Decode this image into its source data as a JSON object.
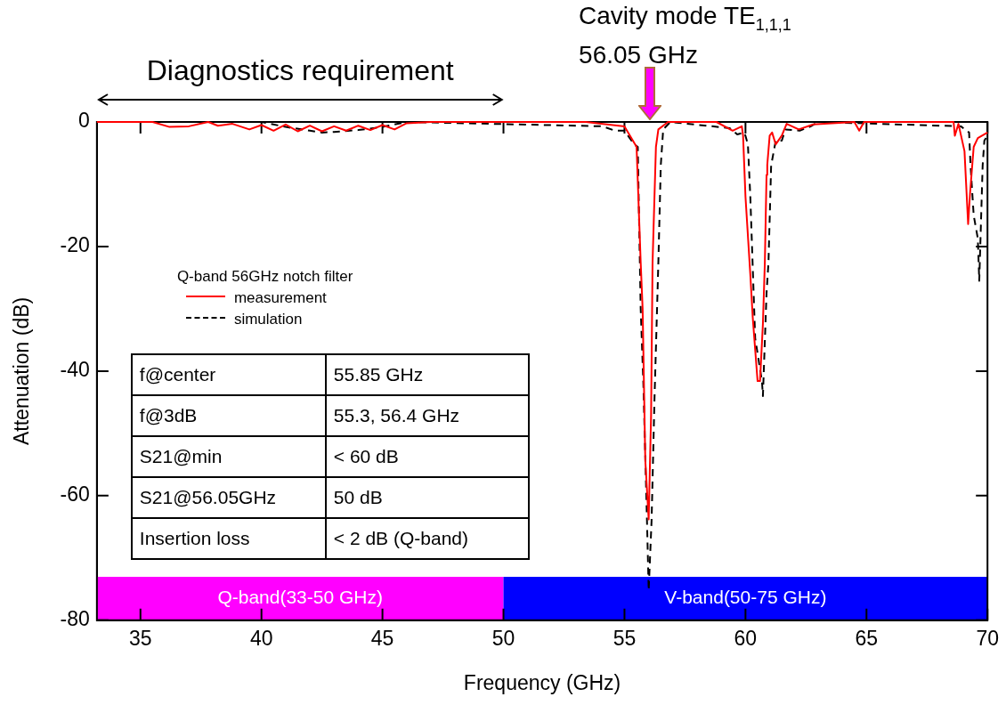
{
  "chart_data": {
    "type": "line",
    "xlabel": "Frequency (GHz)",
    "ylabel": "Attenuation (dB)",
    "legend_title": "Q-band 56GHz notch filter",
    "legend": "left",
    "marker": "none",
    "grid": false,
    "xlim": [
      33.2,
      70
    ],
    "xticks": [
      35,
      40,
      45,
      50,
      55,
      60,
      65,
      70
    ],
    "ylim": [
      -80,
      0
    ],
    "yticks": [
      0,
      -20,
      -40,
      -60,
      -80
    ],
    "series": [
      {
        "name": "measurement",
        "color": "#ff0000",
        "line_style": "solid",
        "x": [
          33.2,
          35.5,
          36.2,
          37,
          37.8,
          38.2,
          38.8,
          39.5,
          40,
          40.5,
          41,
          41.5,
          42,
          42.5,
          43,
          43.5,
          44,
          44.5,
          45,
          45.5,
          46,
          47,
          50,
          53.4,
          55.0,
          55.5,
          55.67,
          55.75,
          55.86,
          56.0,
          56.1,
          56.16,
          56.3,
          56.4,
          56.8,
          58.8,
          59.47,
          59.85,
          59.9,
          60.0,
          60.2,
          60.3,
          60.5,
          60.6,
          60.72,
          60.8,
          60.87,
          60.9,
          61.0,
          61.1,
          61.25,
          61.5,
          61.7,
          62.2,
          62.8,
          64.5,
          64.7,
          64.9,
          68.6,
          68.65,
          68.8,
          69.05,
          69.2,
          69.28,
          69.43,
          69.6,
          70
        ],
        "values": [
          0,
          0,
          -0.8,
          -0.7,
          0,
          -0.6,
          -0.3,
          -1.2,
          -0.5,
          -1.4,
          -0.4,
          -1.5,
          -0.6,
          -1.5,
          -0.7,
          -1.4,
          -0.6,
          -1.3,
          -0.5,
          -1.2,
          -0.2,
          0,
          0,
          0,
          -0.7,
          -4,
          -22.6,
          -30,
          -54.3,
          -63.8,
          -47,
          -22.6,
          -4,
          -1.2,
          0,
          0,
          -1.4,
          -0.7,
          -2.2,
          -12,
          -24.5,
          -31.4,
          -41.6,
          -41.6,
          -32.4,
          -22.6,
          -8.5,
          -6.9,
          -2.2,
          -1.7,
          -3.6,
          -2.2,
          -0.3,
          -1.2,
          -0.4,
          0,
          -1.4,
          0,
          0,
          -2.2,
          -0.3,
          -4.7,
          -16.4,
          -11.4,
          -4,
          -2.6,
          -1.7
        ]
      },
      {
        "name": "simulation",
        "color": "#000000",
        "line_style": "dashed",
        "x": [
          33.2,
          40,
          41,
          42,
          42.5,
          43,
          44,
          45,
          46,
          54.1,
          54.6,
          55.0,
          55.4,
          55.55,
          55.67,
          55.78,
          55.93,
          56.0,
          56.12,
          56.24,
          56.4,
          56.5,
          56.6,
          56.9,
          59.35,
          59.66,
          59.96,
          60.1,
          60.2,
          60.4,
          60.68,
          60.72,
          60.87,
          60.95,
          61.06,
          61.25,
          61.5,
          61.65,
          62.24,
          62.7,
          63,
          68.9,
          69.24,
          69.3,
          69.43,
          69.6,
          69.66,
          69.8,
          69.87,
          70
        ],
        "values": [
          0,
          0,
          -0.8,
          -1.4,
          -1.7,
          -1.6,
          -1.3,
          -0.8,
          0,
          -0.7,
          -1.4,
          -1.4,
          -3.6,
          -4,
          -30,
          -42,
          -64,
          -75.2,
          -64,
          -44.5,
          -22.6,
          -7,
          -1.2,
          0,
          -1,
          -2,
          -1.7,
          -3.6,
          -12,
          -34.7,
          -41.6,
          -44,
          -27.5,
          -22.6,
          -7,
          -3,
          -3,
          -1.2,
          -1.4,
          -0.7,
          0,
          -0.7,
          -1.7,
          -7,
          -15,
          -18.7,
          -25.5,
          -7,
          -3,
          -2.2
        ]
      }
    ],
    "bands": [
      {
        "axis": "x",
        "from": 33.2,
        "to": 50,
        "label": "Q-band(33-50 GHz)",
        "color": "#ff00ff"
      },
      {
        "axis": "x",
        "from": 50,
        "to": 70,
        "label": "V-band(50-75 GHz)",
        "color": "#0000ff"
      }
    ],
    "annotations": [
      "Cavity mode TE$_{1,1,1}$",
      "56.05 GHz",
      "Diagnostics requirement",
      "f@center",
      "55.85 GHz",
      "f@3dB",
      "55.3, 56.4 GHz",
      "S21@min",
      "< 60 dB",
      "S21@56.05GHz",
      "50 dB",
      "Insertion loss",
      "< 2 dB (Q-band)"
    ]
  }
}
